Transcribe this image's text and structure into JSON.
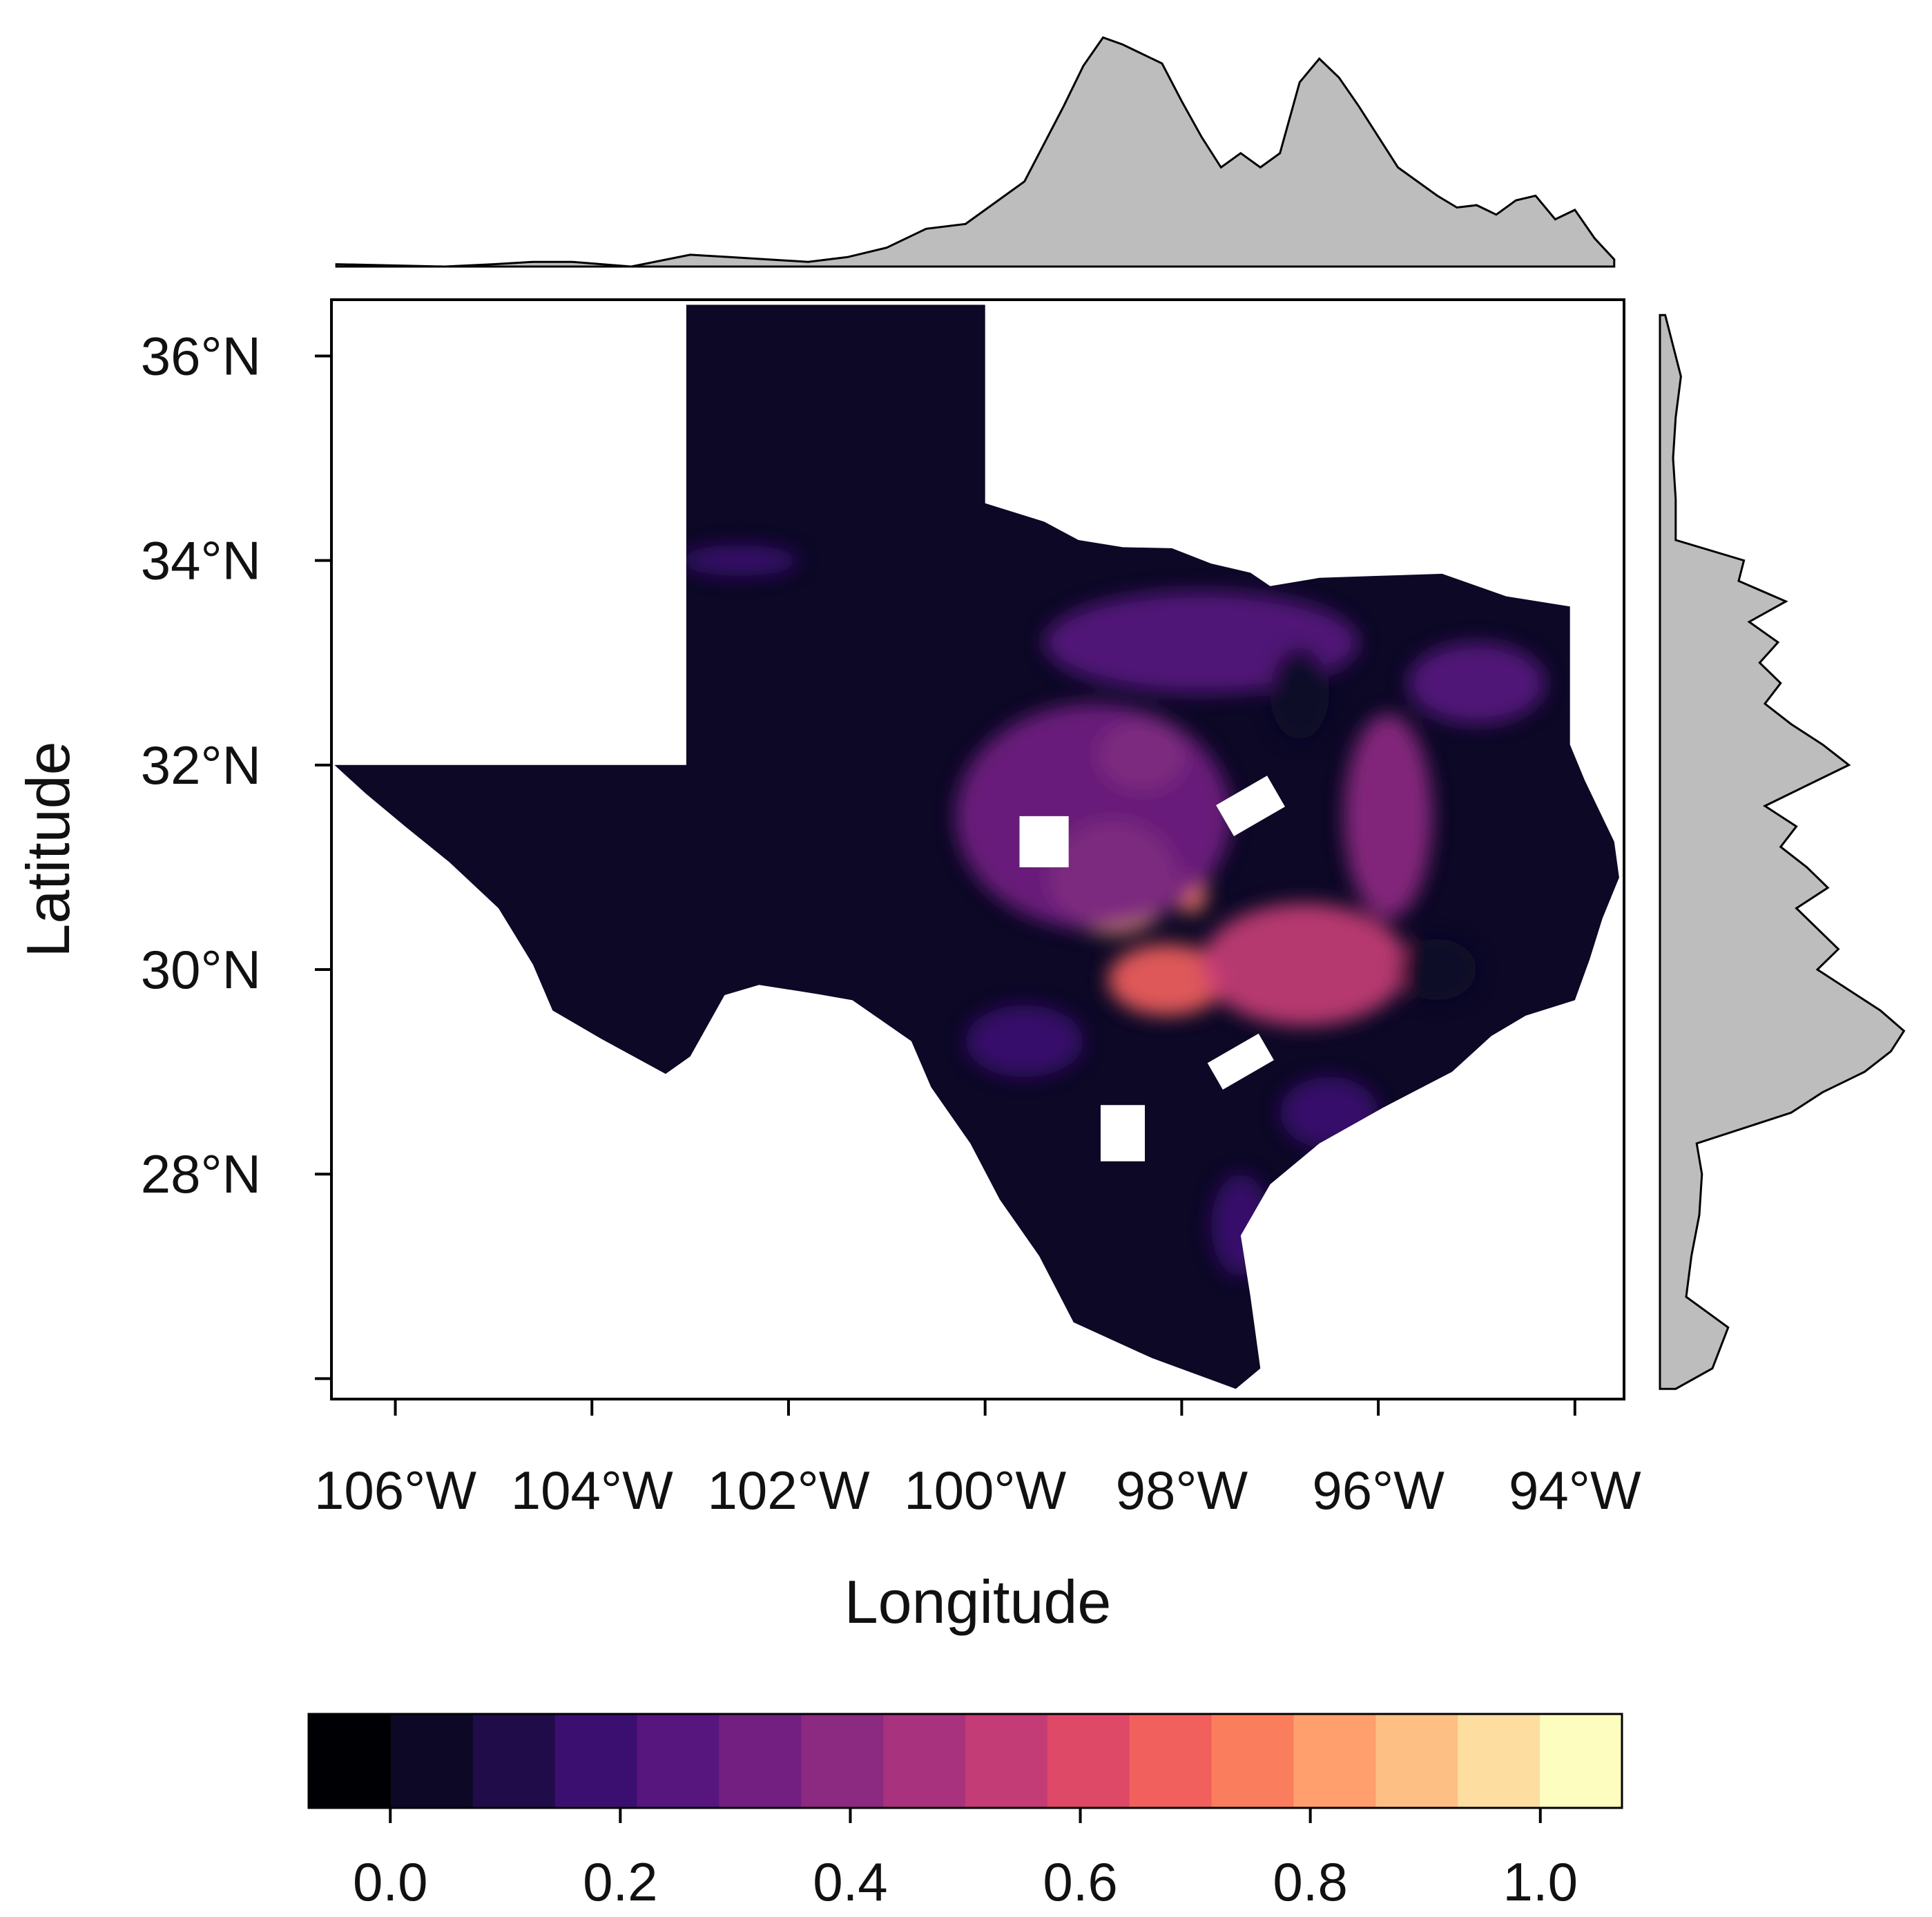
{
  "axes": {
    "xlabel": "Longitude",
    "ylabel": "Latitude",
    "x_ticks": [
      {
        "value": -106,
        "label": "106°W"
      },
      {
        "value": -104,
        "label": "104°W"
      },
      {
        "value": -102,
        "label": "102°W"
      },
      {
        "value": -100,
        "label": "100°W"
      },
      {
        "value": -98,
        "label": "98°W"
      },
      {
        "value": -96,
        "label": "96°W"
      },
      {
        "value": -94,
        "label": "94°W"
      }
    ],
    "y_ticks": [
      {
        "value": 26,
        "label": ""
      },
      {
        "value": 28,
        "label": "28°N"
      },
      {
        "value": 30,
        "label": "30°N"
      },
      {
        "value": 32,
        "label": "32°N"
      },
      {
        "value": 34,
        "label": "34°N"
      },
      {
        "value": 36,
        "label": "36°N"
      }
    ],
    "xlim": [
      -106.65,
      -93.5
    ],
    "ylim": [
      25.8,
      36.55
    ]
  },
  "colorbar": {
    "range": [
      -0.071,
      1.071
    ],
    "ticks": [
      {
        "value": 0.0,
        "label": "0.0"
      },
      {
        "value": 0.2,
        "label": "0.2"
      },
      {
        "value": 0.4,
        "label": "0.4"
      },
      {
        "value": 0.6,
        "label": "0.6"
      },
      {
        "value": 0.8,
        "label": "0.8"
      },
      {
        "value": 1.0,
        "label": "1.0"
      }
    ],
    "colors": [
      "#000004",
      "#0c0826",
      "#210c4a",
      "#3b0f70",
      "#57157e",
      "#721f81",
      "#8c2981",
      "#a8327d",
      "#c43c75",
      "#de4968",
      "#f1605d",
      "#fa7e5e",
      "#fe9f6d",
      "#febf84",
      "#fddea0",
      "#fcfdbf"
    ]
  },
  "map": {
    "region": "Texas",
    "background_fill": "#0c0826",
    "outline": [
      [
        -106.62,
        32.0
      ],
      [
        -106.3,
        31.72
      ],
      [
        -105.9,
        31.4
      ],
      [
        -105.45,
        31.05
      ],
      [
        -104.95,
        30.6
      ],
      [
        -104.6,
        30.05
      ],
      [
        -104.4,
        29.6
      ],
      [
        -103.9,
        29.32
      ],
      [
        -103.25,
        28.98
      ],
      [
        -103.0,
        29.15
      ],
      [
        -102.65,
        29.75
      ],
      [
        -102.3,
        29.85
      ],
      [
        -101.7,
        29.76
      ],
      [
        -101.35,
        29.7
      ],
      [
        -100.75,
        29.3
      ],
      [
        -100.55,
        28.85
      ],
      [
        -100.15,
        28.3
      ],
      [
        -99.85,
        27.75
      ],
      [
        -99.45,
        27.2
      ],
      [
        -99.1,
        26.55
      ],
      [
        -98.3,
        26.2
      ],
      [
        -97.45,
        25.9
      ],
      [
        -97.2,
        26.1
      ],
      [
        -97.3,
        26.8
      ],
      [
        -97.4,
        27.4
      ],
      [
        -97.1,
        27.9
      ],
      [
        -96.6,
        28.3
      ],
      [
        -95.95,
        28.65
      ],
      [
        -95.25,
        29.0
      ],
      [
        -94.85,
        29.35
      ],
      [
        -94.5,
        29.55
      ],
      [
        -94.0,
        29.7
      ],
      [
        -93.85,
        30.1
      ],
      [
        -93.72,
        30.5
      ],
      [
        -93.55,
        30.9
      ],
      [
        -93.6,
        31.25
      ],
      [
        -93.9,
        31.85
      ],
      [
        -94.05,
        32.2
      ],
      [
        -94.05,
        33.55
      ],
      [
        -94.7,
        33.65
      ],
      [
        -95.35,
        33.87
      ],
      [
        -96.0,
        33.85
      ],
      [
        -96.6,
        33.83
      ],
      [
        -97.1,
        33.75
      ],
      [
        -97.3,
        33.88
      ],
      [
        -97.7,
        33.97
      ],
      [
        -98.1,
        34.12
      ],
      [
        -98.6,
        34.13
      ],
      [
        -99.05,
        34.2
      ],
      [
        -99.4,
        34.38
      ],
      [
        -100.0,
        34.56
      ],
      [
        -100.0,
        36.5
      ],
      [
        -103.04,
        36.5
      ],
      [
        -103.04,
        32.0
      ]
    ],
    "hotspots": [
      {
        "lon": -98.4,
        "lat": 32.1,
        "rx": 0.45,
        "ry": 0.35,
        "value": 0.82
      },
      {
        "lon": -98.7,
        "lat": 30.9,
        "rx": 0.65,
        "ry": 0.55,
        "value": 0.83
      },
      {
        "lon": -98.15,
        "lat": 29.9,
        "rx": 0.6,
        "ry": 0.35,
        "value": 0.66
      },
      {
        "lon": -97.9,
        "lat": 30.75,
        "rx": 0.15,
        "ry": 0.2,
        "value": 0.72
      },
      {
        "lon": -96.75,
        "lat": 30.05,
        "rx": 1.05,
        "ry": 0.6,
        "value": 0.5
      },
      {
        "lon": -95.9,
        "lat": 31.5,
        "rx": 0.45,
        "ry": 1.0,
        "value": 0.42
      },
      {
        "lon": -98.9,
        "lat": 31.5,
        "rx": 1.4,
        "ry": 1.1,
        "value": 0.3
      },
      {
        "lon": -97.8,
        "lat": 33.2,
        "rx": 1.6,
        "ry": 0.5,
        "value": 0.26
      },
      {
        "lon": -95.0,
        "lat": 32.8,
        "rx": 0.7,
        "ry": 0.4,
        "value": 0.28
      },
      {
        "lon": -99.6,
        "lat": 29.3,
        "rx": 0.6,
        "ry": 0.35,
        "value": 0.2
      },
      {
        "lon": -96.5,
        "lat": 28.6,
        "rx": 0.5,
        "ry": 0.35,
        "value": 0.2
      },
      {
        "lon": -97.4,
        "lat": 27.5,
        "rx": 0.3,
        "ry": 0.5,
        "value": 0.15
      },
      {
        "lon": -102.5,
        "lat": 34.0,
        "rx": 0.6,
        "ry": 0.15,
        "value": 0.2
      },
      {
        "lon": -96.8,
        "lat": 32.7,
        "rx": 0.3,
        "ry": 0.45,
        "value": 0.02
      },
      {
        "lon": -95.4,
        "lat": 30.0,
        "rx": 0.4,
        "ry": 0.3,
        "value": 0.02
      }
    ],
    "white_gaps": [
      {
        "lon": -99.4,
        "lat": 31.25,
        "w": 0.5,
        "h": 0.5,
        "angle": 0
      },
      {
        "lon": -97.3,
        "lat": 31.6,
        "w": 0.6,
        "h": 0.35,
        "angle": -30
      },
      {
        "lon": -97.4,
        "lat": 29.1,
        "w": 0.6,
        "h": 0.3,
        "angle": -30
      },
      {
        "lon": -98.6,
        "lat": 28.4,
        "w": 0.45,
        "h": 0.55,
        "angle": 0
      }
    ]
  },
  "marginal_top": {
    "lon": [
      -106.6,
      -105.5,
      -105.0,
      -104.6,
      -104.2,
      -103.6,
      -103.0,
      -102.6,
      -102.2,
      -101.8,
      -101.4,
      -101.0,
      -100.6,
      -100.2,
      -99.8,
      -99.6,
      -99.4,
      -99.2,
      -99.0,
      -98.8,
      -98.6,
      -98.4,
      -98.2,
      -98.0,
      -97.8,
      -97.6,
      -97.4,
      -97.2,
      -97.0,
      -96.8,
      -96.6,
      -96.4,
      -96.2,
      -96.0,
      -95.8,
      -95.6,
      -95.4,
      -95.2,
      -95.0,
      -94.8,
      -94.6,
      -94.4,
      -94.2,
      -94.0,
      -93.8,
      -93.6
    ],
    "density": [
      0.01,
      0.0,
      0.01,
      0.02,
      0.02,
      0.0,
      0.05,
      0.04,
      0.03,
      0.02,
      0.04,
      0.08,
      0.16,
      0.18,
      0.3,
      0.36,
      0.52,
      0.68,
      0.85,
      0.97,
      0.94,
      0.9,
      0.86,
      0.7,
      0.55,
      0.42,
      0.48,
      0.42,
      0.48,
      0.78,
      0.88,
      0.8,
      0.68,
      0.55,
      0.42,
      0.36,
      0.3,
      0.25,
      0.26,
      0.22,
      0.28,
      0.3,
      0.2,
      0.24,
      0.12,
      0.03
    ]
  },
  "marginal_right": {
    "lat": [
      25.9,
      26.1,
      26.5,
      26.8,
      27.2,
      27.6,
      28.0,
      28.3,
      28.6,
      28.8,
      29.0,
      29.2,
      29.4,
      29.6,
      29.8,
      30.0,
      30.2,
      30.4,
      30.6,
      30.8,
      31.0,
      31.2,
      31.4,
      31.6,
      31.8,
      32.0,
      32.2,
      32.4,
      32.6,
      32.8,
      33.0,
      33.2,
      33.4,
      33.6,
      33.8,
      34.0,
      34.2,
      34.6,
      35.0,
      35.4,
      35.8,
      36.1,
      36.4
    ],
    "density": [
      0.06,
      0.2,
      0.26,
      0.1,
      0.12,
      0.15,
      0.16,
      0.14,
      0.5,
      0.62,
      0.78,
      0.88,
      0.93,
      0.84,
      0.72,
      0.6,
      0.68,
      0.6,
      0.52,
      0.64,
      0.56,
      0.46,
      0.52,
      0.4,
      0.56,
      0.72,
      0.62,
      0.5,
      0.4,
      0.46,
      0.38,
      0.45,
      0.34,
      0.48,
      0.3,
      0.32,
      0.06,
      0.06,
      0.05,
      0.06,
      0.08,
      0.05,
      0.02
    ]
  }
}
